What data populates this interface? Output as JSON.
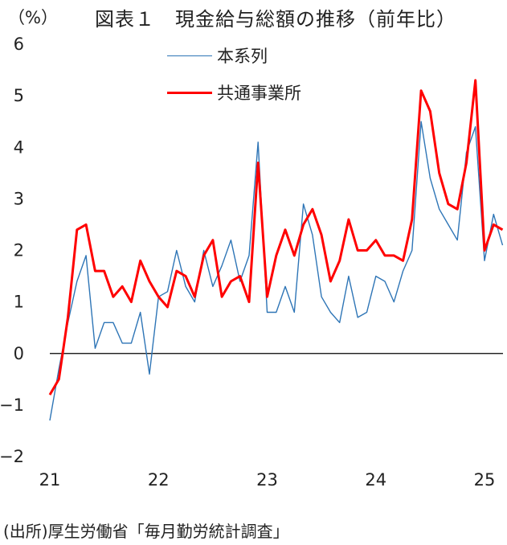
{
  "header": {
    "unit": "（%）",
    "title": "図表１　現金給与総額の推移（前年比）"
  },
  "footer": {
    "source": "(出所)厚生労働省「毎月勤労統計調査」"
  },
  "colors": {
    "series_1": "#2e75b6",
    "series_2": "#ff0000",
    "zero_line": "#000000"
  },
  "chart_data": {
    "type": "line",
    "title": "図表１　現金給与総額の推移（前年比）",
    "ylabel": "（%）",
    "xlabel": "",
    "ylim": [
      -2,
      6
    ],
    "yticks": [
      -2,
      -1,
      0,
      1,
      2,
      3,
      4,
      5,
      6
    ],
    "xlim": [
      2021.0,
      2025.17
    ],
    "xticks": [
      {
        "value": 2021,
        "label": "21"
      },
      {
        "value": 2022,
        "label": "22"
      },
      {
        "value": 2023,
        "label": "23"
      },
      {
        "value": 2024,
        "label": "24"
      },
      {
        "value": 2025,
        "label": "25"
      }
    ],
    "grid": false,
    "legend_position": "top-center",
    "x_months": [
      "2021-01",
      "2021-02",
      "2021-03",
      "2021-04",
      "2021-05",
      "2021-06",
      "2021-07",
      "2021-08",
      "2021-09",
      "2021-10",
      "2021-11",
      "2021-12",
      "2022-01",
      "2022-02",
      "2022-03",
      "2022-04",
      "2022-05",
      "2022-06",
      "2022-07",
      "2022-08",
      "2022-09",
      "2022-10",
      "2022-11",
      "2022-12",
      "2023-01",
      "2023-02",
      "2023-03",
      "2023-04",
      "2023-05",
      "2023-06",
      "2023-07",
      "2023-08",
      "2023-09",
      "2023-10",
      "2023-11",
      "2023-12",
      "2024-01",
      "2024-02",
      "2024-03",
      "2024-04",
      "2024-05",
      "2024-06",
      "2024-07",
      "2024-08",
      "2024-09",
      "2024-10",
      "2024-11",
      "2024-12",
      "2025-01",
      "2025-02",
      "2025-03"
    ],
    "series": [
      {
        "name": "本系列",
        "color": "#2e75b6",
        "width": "thin",
        "values": [
          -1.3,
          -0.3,
          0.6,
          1.4,
          1.9,
          0.1,
          0.6,
          0.6,
          0.2,
          0.2,
          0.8,
          -0.4,
          1.1,
          1.2,
          2.0,
          1.3,
          1.0,
          2.0,
          1.3,
          1.7,
          2.2,
          1.4,
          1.9,
          4.1,
          0.8,
          0.8,
          1.3,
          0.8,
          2.9,
          2.3,
          1.1,
          0.8,
          0.6,
          1.5,
          0.7,
          0.8,
          1.5,
          1.4,
          1.0,
          1.6,
          2.0,
          4.5,
          3.4,
          2.8,
          2.5,
          2.2,
          3.9,
          4.4,
          1.8,
          2.7,
          2.1
        ]
      },
      {
        "name": "共通事業所",
        "color": "#ff0000",
        "width": "thick",
        "values": [
          -0.8,
          -0.5,
          0.7,
          2.4,
          2.5,
          1.6,
          1.6,
          1.1,
          1.3,
          1.0,
          1.8,
          1.4,
          1.1,
          0.9,
          1.6,
          1.5,
          1.1,
          1.9,
          2.2,
          1.1,
          1.4,
          1.5,
          1.0,
          3.7,
          1.1,
          1.9,
          2.4,
          1.9,
          2.5,
          2.8,
          2.3,
          1.4,
          1.8,
          2.6,
          2.0,
          2.0,
          2.2,
          1.9,
          1.9,
          1.8,
          2.6,
          5.1,
          4.7,
          3.5,
          2.9,
          2.8,
          3.7,
          5.3,
          2.0,
          2.5,
          2.4
        ]
      }
    ]
  }
}
